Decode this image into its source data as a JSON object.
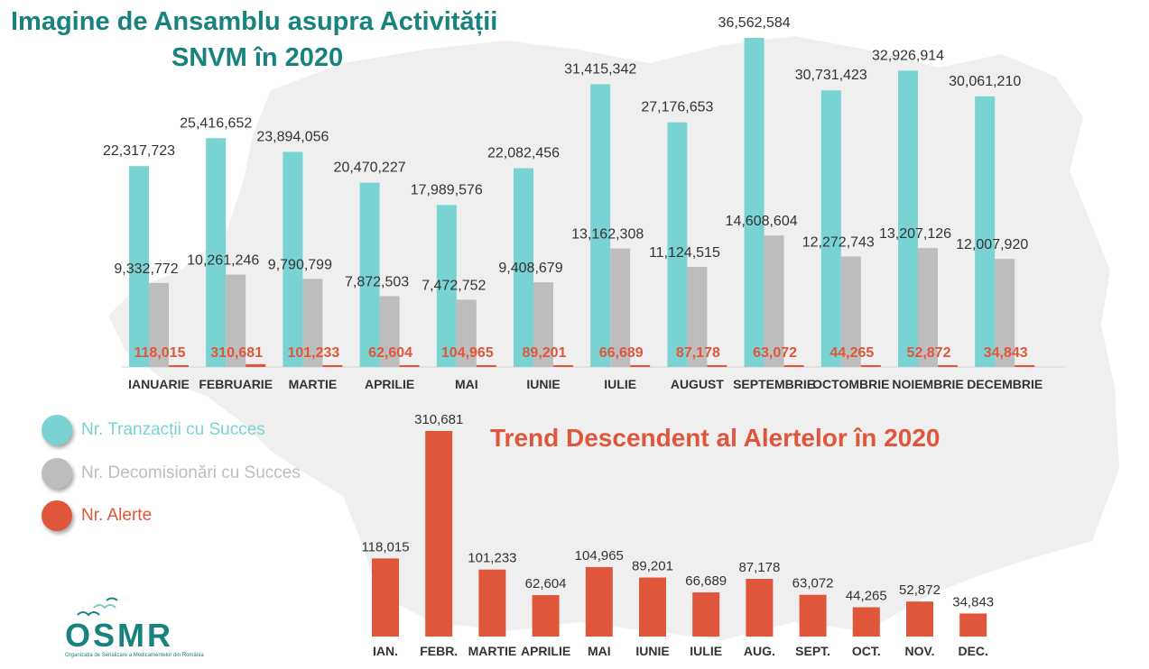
{
  "colors": {
    "title": "#17827e",
    "success": "#79d3d2",
    "decom": "#bdbdbd",
    "alert": "#e0563a",
    "map": "#efefef",
    "value_text": "#333333"
  },
  "title": {
    "line1": "Imagine de Ansamblu asupra Activității",
    "line2": "SNVM în 2020"
  },
  "legend": [
    {
      "label": "Nr. Tranzacții cu Succes",
      "color": "#79d3d2"
    },
    {
      "label": "Nr. Decomisionări cu Succes",
      "color": "#bdbdbd"
    },
    {
      "label": "Nr. Alerte",
      "color": "#e0563a"
    }
  ],
  "subtitle": "Trend Descendent al Alertelor în 2020",
  "logo": {
    "text": "OSMR",
    "subtitle": "Organizația de Serializare a Medicamentelor din România",
    "icon": "birds-icon"
  },
  "chart_data": [
    {
      "type": "bar",
      "categories": [
        "IANUARIE",
        "FEBRUARIE",
        "MARTIE",
        "APRILIE",
        "MAI",
        "IUNIE",
        "IULIE",
        "AUGUST",
        "SEPTEMBRIE",
        "OCTOMBRIE",
        "NOIEMBRIE",
        "DECEMBRIE"
      ],
      "series": [
        {
          "name": "Nr. Tranzacții cu Succes",
          "values": [
            22317723,
            25416652,
            23894056,
            20470227,
            17989576,
            22082456,
            31415342,
            27176653,
            36562584,
            30731423,
            32926914,
            30061210
          ],
          "labels": [
            "22,317,723",
            "25,416,652",
            "23,894,056",
            "20,470,227",
            "17,989,576",
            "22,082,456",
            "31,415,342",
            "27,176,653",
            "36,562,584",
            "30,731,423",
            "32,926,914",
            "30,061,210"
          ]
        },
        {
          "name": "Nr. Decomisionări cu Succes",
          "values": [
            9332772,
            10261246,
            9790799,
            7872503,
            7472752,
            9408679,
            13162308,
            11124515,
            14608604,
            12272743,
            13207126,
            12007920
          ],
          "labels": [
            "9,332,772",
            "10,261,246",
            "9,790,799",
            "7,872,503",
            "7,472,752",
            "9,408,679",
            "13,162,308",
            "11,124,515",
            "14,608,604",
            "12,272,743",
            "13,207,126",
            "12,007,920"
          ]
        },
        {
          "name": "Nr. Alerte",
          "values": [
            118015,
            310681,
            101233,
            62604,
            104965,
            89201,
            66689,
            87178,
            63072,
            44265,
            52872,
            34843
          ],
          "labels": [
            "118,015",
            "310,681",
            "101,233",
            "62,604",
            "104,965",
            "89,201",
            "66,689",
            "87,178",
            "63,072",
            "44,265",
            "52,872",
            "34,843"
          ]
        }
      ],
      "ylim": [
        0,
        36562584
      ]
    },
    {
      "type": "bar",
      "categories": [
        "IAN.",
        "FEBR.",
        "MARTIE",
        "APRILIE",
        "MAI",
        "IUNIE",
        "IULIE",
        "AUG.",
        "SEPT.",
        "OCT.",
        "NOV.",
        "DEC."
      ],
      "series": [
        {
          "name": "Nr. Alerte",
          "values": [
            118015,
            310681,
            101233,
            62604,
            104965,
            89201,
            66689,
            87178,
            63072,
            44265,
            52872,
            34843
          ],
          "labels": [
            "118,015",
            "310,681",
            "101,233",
            "62,604",
            "104,965",
            "89,201",
            "66,689",
            "87,178",
            "63,072",
            "44,265",
            "52,872",
            "34,843"
          ]
        }
      ],
      "ylim": [
        0,
        310681
      ]
    }
  ]
}
